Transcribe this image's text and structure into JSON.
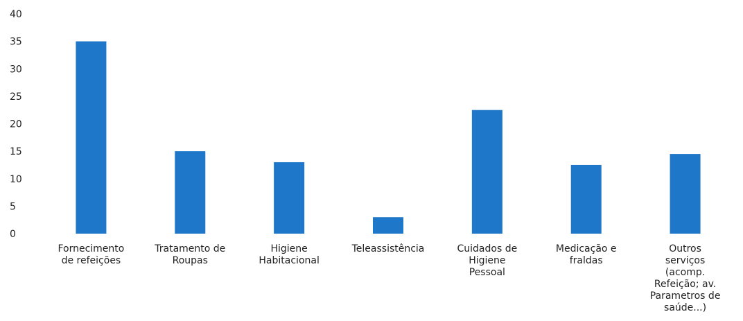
{
  "chart_data": {
    "type": "bar",
    "title": "",
    "xlabel": "",
    "ylabel": "",
    "ylim": [
      0,
      40
    ],
    "yticks": [
      0,
      5,
      10,
      15,
      20,
      25,
      30,
      35,
      40
    ],
    "grid": false,
    "legend": "none",
    "bar_color": "#1f77c9",
    "categories": [
      [
        "Fornecimento",
        "de refeições"
      ],
      [
        "Tratamento de",
        "Roupas"
      ],
      [
        "Higiene",
        "Habitacional"
      ],
      [
        "Teleassistência"
      ],
      [
        "Cuidados de",
        "Higiene",
        "Pessoal"
      ],
      [
        "Medicação e",
        "fraldas"
      ],
      [
        "Outros",
        "serviços",
        "(acomp.",
        "Refeição; av.",
        "Parametros de",
        "saúde...)"
      ]
    ],
    "values": [
      35,
      15,
      13,
      3,
      22.5,
      12.5,
      14.5
    ]
  }
}
